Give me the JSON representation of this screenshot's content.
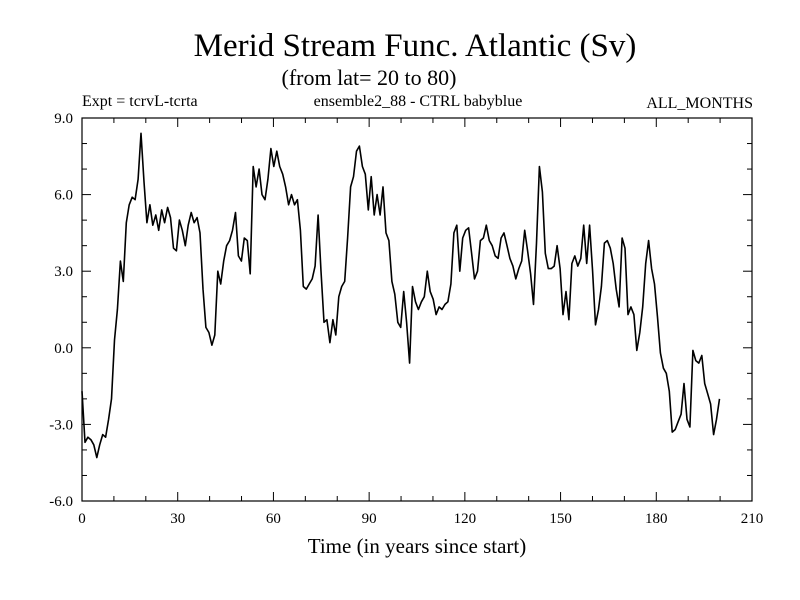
{
  "chart_data": {
    "type": "line",
    "title": "Merid Stream Func. Atlantic (Sv)",
    "subtitle": "(from lat= 20 to 80)",
    "header_left": "Expt = tcrvL-tcrta",
    "header_center": "ensemble2_88 - CTRL babyblue",
    "header_right": "ALL_MONTHS",
    "xlabel": "Time (in years since start)",
    "ylabel": "",
    "xlim": [
      0,
      210
    ],
    "ylim": [
      -6,
      9
    ],
    "xticks": [
      0,
      30,
      60,
      90,
      120,
      150,
      180,
      210
    ],
    "xtick_labels": [
      "0",
      "30",
      "60",
      "90",
      "120",
      "150",
      "180",
      "210"
    ],
    "yticks": [
      -6,
      -3,
      0,
      3,
      6,
      9
    ],
    "ytick_labels": [
      "-6.0",
      "-3.0",
      "0.0",
      "3.0",
      "6.0",
      "9.0"
    ],
    "grid": false,
    "line_color": "#000000",
    "series": [
      {
        "values": [
          -1.7,
          -3.7,
          -3.5,
          -3.6,
          -3.8,
          -4.3,
          -3.8,
          -3.4,
          -3.5,
          -2.8,
          -2.0,
          0.3,
          1.5,
          3.4,
          2.6,
          4.9,
          5.6,
          5.9,
          5.8,
          6.6,
          8.4,
          6.5,
          4.9,
          5.6,
          4.8,
          5.2,
          4.6,
          5.4,
          4.9,
          5.5,
          5.1,
          3.9,
          3.8,
          5.0,
          4.6,
          4.0,
          4.8,
          5.3,
          4.9,
          5.1,
          4.5,
          2.3,
          0.8,
          0.6,
          0.1,
          0.5,
          3.0,
          2.5,
          3.4,
          4.0,
          4.2,
          4.6,
          5.3,
          3.6,
          3.4,
          4.3,
          4.2,
          2.9,
          7.1,
          6.3,
          7.0,
          6.0,
          5.8,
          6.6,
          7.8,
          7.1,
          7.7,
          7.1,
          6.8,
          6.3,
          5.6,
          6.0,
          5.6,
          5.8,
          4.6,
          2.4,
          2.3,
          2.5,
          2.7,
          3.2,
          5.2,
          3.0,
          1.0,
          1.1,
          0.2,
          1.1,
          0.5,
          2.0,
          2.4,
          2.6,
          4.3,
          6.3,
          6.7,
          7.7,
          7.9,
          7.1,
          6.8,
          5.4,
          6.7,
          5.2,
          6.0,
          5.2,
          6.3,
          4.5,
          4.2,
          2.6,
          2.1,
          1.0,
          0.8,
          2.2,
          1.0,
          -0.6,
          2.4,
          1.8,
          1.5,
          1.8,
          2.0,
          3.0,
          2.2,
          1.9,
          1.3,
          1.6,
          1.5,
          1.7,
          1.8,
          2.5,
          4.5,
          4.8,
          3.0,
          4.3,
          4.6,
          4.7,
          3.7,
          2.7,
          3.0,
          4.2,
          4.3,
          4.8,
          4.2,
          4.0,
          3.6,
          3.5,
          4.3,
          4.5,
          4.0,
          3.5,
          3.2,
          2.7,
          3.1,
          3.4,
          4.6,
          3.8,
          2.9,
          1.7,
          4.1,
          7.1,
          6.1,
          3.7,
          3.1,
          3.1,
          3.2,
          4.0,
          3.1,
          1.3,
          2.2,
          1.1,
          3.3,
          3.6,
          3.2,
          3.5,
          4.8,
          3.3,
          4.8,
          3.0,
          0.9,
          1.5,
          2.4,
          4.1,
          4.2,
          3.9,
          3.3,
          2.3,
          1.6,
          4.3,
          3.9,
          1.3,
          1.6,
          1.3,
          -0.1,
          0.6,
          1.6,
          3.3,
          4.2,
          3.1,
          2.5,
          1.2,
          -0.2,
          -0.8,
          -1.0,
          -1.7,
          -3.3,
          -3.2,
          -2.9,
          -2.6,
          -1.4,
          -2.8,
          -3.1,
          -0.1,
          -0.5,
          -0.6,
          -0.3,
          -1.4,
          -1.8,
          -2.2,
          -3.4,
          -2.8,
          -2.0
        ]
      }
    ],
    "x_start": 0,
    "x_step": 0.925
  }
}
